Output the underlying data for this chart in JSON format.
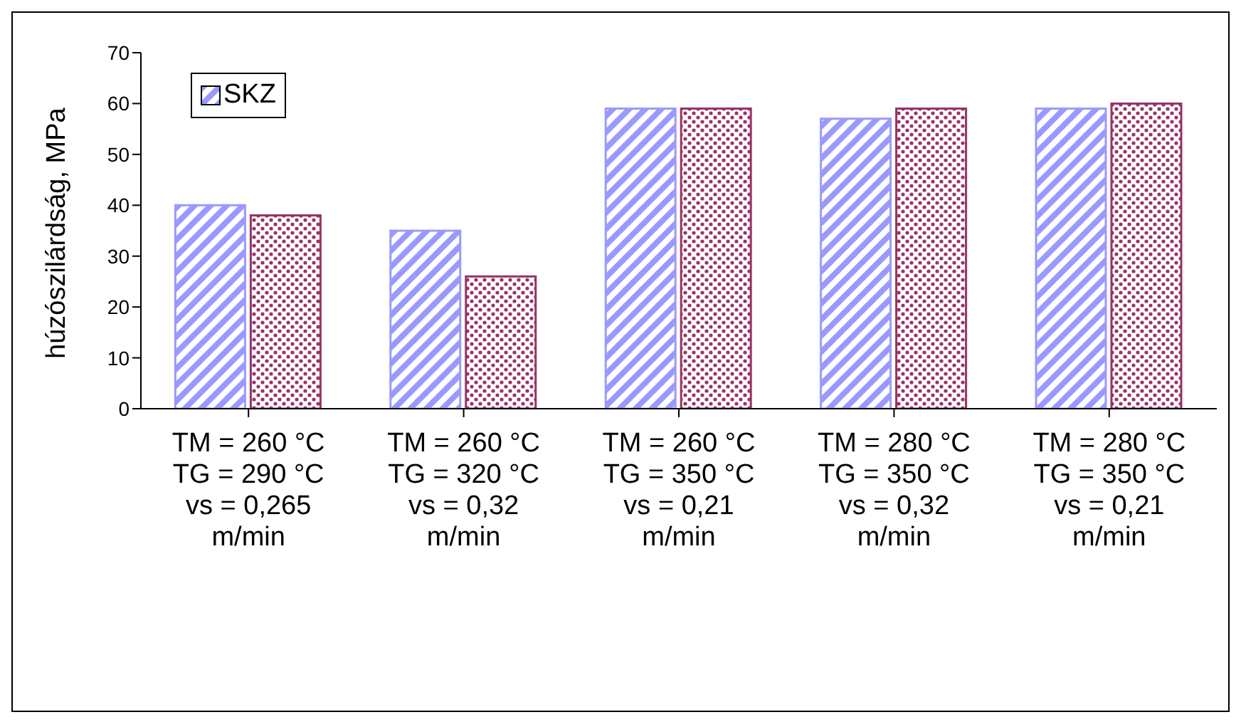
{
  "chart_data": {
    "type": "bar",
    "ylabel": "húzószilárdság, MPa",
    "categories": [
      "TM = 260 °C\nTG = 290 °C\nvs = 0,265\nm/min",
      "TM = 260 °C\nTG = 320 °C\nvs = 0,32\nm/min",
      "TM = 260 °C\nTG = 350 °C\nvs = 0,21\nm/min",
      "TM = 280 °C\nTG = 350 °C\nvs = 0,32\nm/min",
      "TM = 280 °C\nTG = 350 °C\nvs = 0,21\nm/min"
    ],
    "series": [
      {
        "name": "SKZ",
        "color": "#9999ff",
        "values": [
          40,
          35,
          59,
          57,
          59
        ]
      },
      {
        "color": "#993366",
        "values": [
          38,
          26,
          59,
          59,
          60
        ]
      }
    ],
    "ylim": [
      0,
      70
    ],
    "yticks": [
      0,
      10,
      20,
      30,
      40,
      50,
      60,
      70
    ],
    "legend": "top left"
  }
}
